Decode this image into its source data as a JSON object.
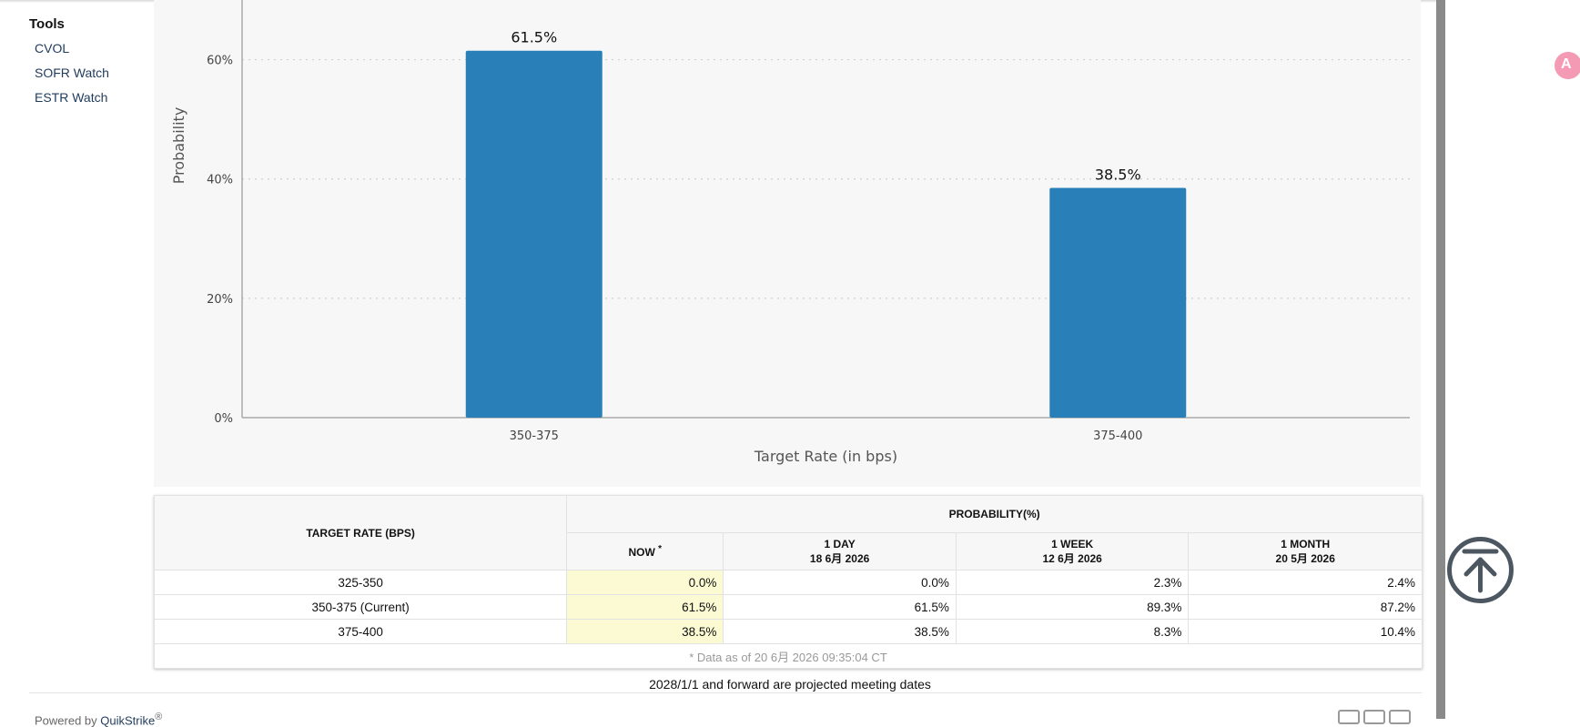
{
  "sidebar": {
    "title": "Tools",
    "items": [
      {
        "label": "CVOL"
      },
      {
        "label": "SOFR Watch"
      },
      {
        "label": "ESTR Watch"
      }
    ]
  },
  "chart_data": {
    "type": "bar",
    "categories": [
      "350-375",
      "375-400"
    ],
    "values": [
      61.5,
      38.5
    ],
    "data_labels": [
      "61.5%",
      "38.5%"
    ],
    "ylim": [
      0,
      70
    ],
    "yticks": [
      0,
      20,
      40,
      60
    ],
    "ytick_labels": [
      "0%",
      "20%",
      "40%",
      "60%"
    ],
    "xlabel": "Target Rate (in bps)",
    "ylabel": "Probability",
    "grid": true,
    "color": "#2980b9"
  },
  "table": {
    "header_target": "TARGET RATE (BPS)",
    "header_prob": "PROBABILITY(%)",
    "columns": [
      {
        "line1": "NOW",
        "marker": "*",
        "line2": ""
      },
      {
        "line1": "1 DAY",
        "line2": "18 6月 2026"
      },
      {
        "line1": "1 WEEK",
        "line2": "12 6月 2026"
      },
      {
        "line1": "1 MONTH",
        "line2": "20 5月 2026"
      }
    ],
    "rows": [
      {
        "target": "325-350",
        "values": [
          "0.0%",
          "0.0%",
          "2.3%",
          "2.4%"
        ]
      },
      {
        "target": "350-375 (Current)",
        "values": [
          "61.5%",
          "61.5%",
          "89.3%",
          "87.2%"
        ]
      },
      {
        "target": "375-400",
        "values": [
          "38.5%",
          "38.5%",
          "8.3%",
          "10.4%"
        ]
      }
    ],
    "note": "* Data as of 20 6月 2026 09:35:04 CT"
  },
  "footnote": "2028/1/1 and forward are projected meeting dates",
  "powered": {
    "prefix": "Powered by",
    "link": "QuikStrike",
    "mark": "®"
  },
  "icons": {
    "translate": "translate-icon",
    "scroll_top": "arrow-up-circle-icon",
    "socials": [
      "x-icon",
      "youtube-icon",
      "linkedin-icon"
    ]
  },
  "colors": {
    "bar": "#2980b9",
    "now_highlight": "#fbfad3",
    "fab": "#f49ab5"
  }
}
